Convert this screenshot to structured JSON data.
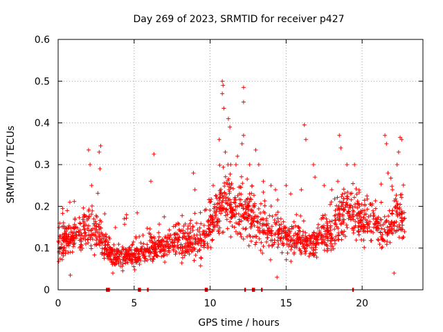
{
  "chart_data": {
    "type": "scatter",
    "title": "Day 269 of 2023, SRMTID for receiver p427",
    "xlabel": "GPS time / hours",
    "ylabel": "SRMTID / TECUs",
    "xlim": [
      0,
      24
    ],
    "ylim": [
      0,
      0.6
    ],
    "x_ticks": [
      0,
      5,
      10,
      15,
      20
    ],
    "x_tick_labels": [
      "0",
      "5",
      "10",
      "15",
      "20"
    ],
    "y_ticks": [
      0,
      0.1,
      0.2,
      0.3,
      0.4,
      0.5,
      0.6
    ],
    "y_tick_labels": [
      "0",
      "0.1",
      "0.2",
      "0.3",
      "0.4",
      "0.5",
      "0.6"
    ],
    "grid": true,
    "series": [
      {
        "name": "SRMTID",
        "color": "#ff0000",
        "marker": "+",
        "base_profile": [
          [
            0.0,
            0.1
          ],
          [
            0.5,
            0.12
          ],
          [
            1.0,
            0.13
          ],
          [
            1.5,
            0.14
          ],
          [
            2.0,
            0.15
          ],
          [
            2.5,
            0.14
          ],
          [
            3.0,
            0.11
          ],
          [
            3.5,
            0.09
          ],
          [
            4.0,
            0.08
          ],
          [
            4.5,
            0.08
          ],
          [
            5.0,
            0.08
          ],
          [
            5.5,
            0.09
          ],
          [
            6.0,
            0.1
          ],
          [
            6.5,
            0.1
          ],
          [
            7.0,
            0.11
          ],
          [
            7.5,
            0.11
          ],
          [
            8.0,
            0.12
          ],
          [
            8.5,
            0.12
          ],
          [
            9.0,
            0.11
          ],
          [
            9.5,
            0.12
          ],
          [
            10.0,
            0.15
          ],
          [
            10.5,
            0.19
          ],
          [
            11.0,
            0.21
          ],
          [
            11.5,
            0.2
          ],
          [
            12.0,
            0.19
          ],
          [
            12.5,
            0.18
          ],
          [
            13.0,
            0.16
          ],
          [
            13.5,
            0.15
          ],
          [
            14.0,
            0.14
          ],
          [
            14.5,
            0.14
          ],
          [
            15.0,
            0.13
          ],
          [
            15.5,
            0.12
          ],
          [
            16.0,
            0.11
          ],
          [
            16.5,
            0.11
          ],
          [
            17.0,
            0.12
          ],
          [
            17.5,
            0.14
          ],
          [
            18.0,
            0.13
          ],
          [
            18.5,
            0.17
          ],
          [
            19.0,
            0.19
          ],
          [
            19.5,
            0.18
          ],
          [
            20.0,
            0.17
          ],
          [
            20.5,
            0.16
          ],
          [
            21.0,
            0.15
          ],
          [
            21.5,
            0.13
          ],
          [
            22.0,
            0.17
          ],
          [
            22.5,
            0.18
          ],
          [
            22.8,
            0.14
          ]
        ],
        "point_count": 1800,
        "peaks": [
          {
            "x": 0.6,
            "y": 0.19
          },
          {
            "x": 2.0,
            "y": 0.335
          },
          {
            "x": 2.1,
            "y": 0.3
          },
          {
            "x": 2.2,
            "y": 0.25
          },
          {
            "x": 2.8,
            "y": 0.345
          },
          {
            "x": 2.7,
            "y": 0.33
          },
          {
            "x": 2.75,
            "y": 0.29
          },
          {
            "x": 4.5,
            "y": 0.18
          },
          {
            "x": 6.1,
            "y": 0.26
          },
          {
            "x": 6.3,
            "y": 0.325
          },
          {
            "x": 8.9,
            "y": 0.28
          },
          {
            "x": 9.0,
            "y": 0.24
          },
          {
            "x": 10.2,
            "y": 0.25
          },
          {
            "x": 10.6,
            "y": 0.36
          },
          {
            "x": 10.8,
            "y": 0.5
          },
          {
            "x": 10.85,
            "y": 0.49
          },
          {
            "x": 10.8,
            "y": 0.47
          },
          {
            "x": 10.9,
            "y": 0.435
          },
          {
            "x": 11.2,
            "y": 0.41
          },
          {
            "x": 11.3,
            "y": 0.39
          },
          {
            "x": 11.0,
            "y": 0.33
          },
          {
            "x": 11.8,
            "y": 0.32
          },
          {
            "x": 12.1,
            "y": 0.35
          },
          {
            "x": 12.2,
            "y": 0.485
          },
          {
            "x": 12.2,
            "y": 0.45
          },
          {
            "x": 12.2,
            "y": 0.37
          },
          {
            "x": 12.6,
            "y": 0.3
          },
          {
            "x": 13.0,
            "y": 0.335
          },
          {
            "x": 13.2,
            "y": 0.3
          },
          {
            "x": 13.5,
            "y": 0.26
          },
          {
            "x": 14.0,
            "y": 0.25
          },
          {
            "x": 14.3,
            "y": 0.24
          },
          {
            "x": 15.0,
            "y": 0.25
          },
          {
            "x": 15.3,
            "y": 0.23
          },
          {
            "x": 16.0,
            "y": 0.24
          },
          {
            "x": 16.2,
            "y": 0.395
          },
          {
            "x": 16.3,
            "y": 0.36
          },
          {
            "x": 16.8,
            "y": 0.3
          },
          {
            "x": 16.9,
            "y": 0.27
          },
          {
            "x": 17.5,
            "y": 0.25
          },
          {
            "x": 18.0,
            "y": 0.24
          },
          {
            "x": 18.5,
            "y": 0.37
          },
          {
            "x": 18.6,
            "y": 0.34
          },
          {
            "x": 18.4,
            "y": 0.26
          },
          {
            "x": 19.0,
            "y": 0.3
          },
          {
            "x": 19.5,
            "y": 0.3
          },
          {
            "x": 21.5,
            "y": 0.37
          },
          {
            "x": 21.6,
            "y": 0.35
          },
          {
            "x": 21.7,
            "y": 0.28
          },
          {
            "x": 22.0,
            "y": 0.24
          },
          {
            "x": 22.3,
            "y": 0.3
          },
          {
            "x": 22.5,
            "y": 0.365
          },
          {
            "x": 22.6,
            "y": 0.36
          },
          {
            "x": 22.4,
            "y": 0.33
          },
          {
            "x": 14.4,
            "y": 0.03
          },
          {
            "x": 0.8,
            "y": 0.035
          },
          {
            "x": 3.6,
            "y": 0.04
          },
          {
            "x": 22.1,
            "y": 0.04
          }
        ],
        "zero_values_at_x": [
          3.2,
          3.3,
          3.35,
          5.3,
          5.4,
          5.9,
          9.7,
          9.8,
          12.3,
          12.8,
          12.9,
          13.4,
          19.4
        ]
      }
    ]
  }
}
